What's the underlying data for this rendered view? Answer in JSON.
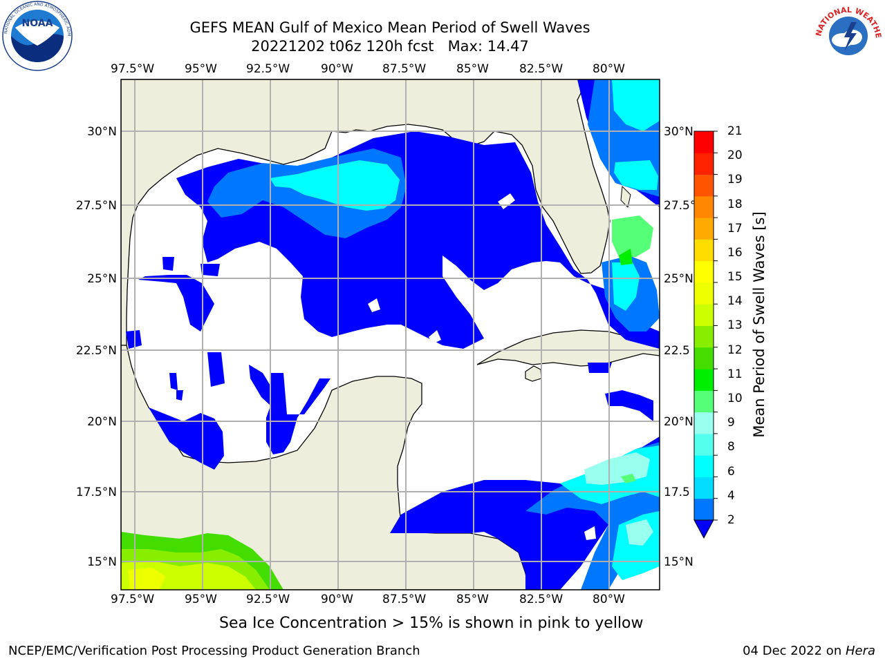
{
  "header": {
    "title_line1": "GEFS MEAN Gulf of Mexico Mean Period of Swell Waves",
    "title_line2": "20221202 t06z 120h fcst   Max: 14.47"
  },
  "logos": {
    "left": {
      "name": "NOAA",
      "ring_text": "NATIONAL OCEANIC AND ATMOSPHERIC ADMINISTRATION · U.S. DEPARTMENT OF COMMERCE"
    },
    "right": {
      "name": "NATIONAL WEATHER SERVICE"
    }
  },
  "map": {
    "lon_labels": [
      "97.5°W",
      "95°W",
      "92.5°W",
      "90°W",
      "87.5°W",
      "85°W",
      "82.5°W",
      "80°W"
    ],
    "lat_labels_left": [
      "30°N",
      "27.5°N",
      "25°N",
      "22.5°N",
      "20°N",
      "17.5°N",
      "15°N"
    ],
    "lat_labels_right": [
      "30°N",
      "27.5°",
      "25°N",
      "22.5",
      "20°N",
      "17.5",
      "15°N"
    ],
    "colors": {
      "land": "#eeeedd",
      "ocean_no_data": "#ffffff",
      "coast": "#000000",
      "grid": "#b0b0b0"
    }
  },
  "colorbar": {
    "label": "Mean Period of Swell Waves [s]",
    "ticks": [
      "2",
      "4",
      "6",
      "8",
      "9",
      "10",
      "11",
      "12",
      "13",
      "14",
      "15",
      "16",
      "17",
      "18",
      "19",
      "20",
      "21"
    ],
    "colors": [
      "#0000ff",
      "#0077ff",
      "#00ddff",
      "#00ffff",
      "#55ffee",
      "#99ffee",
      "#55ff77",
      "#00ee00",
      "#44dd00",
      "#88ee00",
      "#ccff00",
      "#eeff00",
      "#ffff00",
      "#ffdd00",
      "#ffaa00",
      "#ff8800",
      "#ff5500",
      "#ff2200",
      "#ff0000"
    ]
  },
  "footer": {
    "note": "Sea Ice Concentration > 15% is shown in pink to yellow",
    "left": "NCEP/EMC/Verification Post Processing Product Generation Branch",
    "right_date": "04 Dec 2022 on ",
    "right_host": "Hera"
  }
}
